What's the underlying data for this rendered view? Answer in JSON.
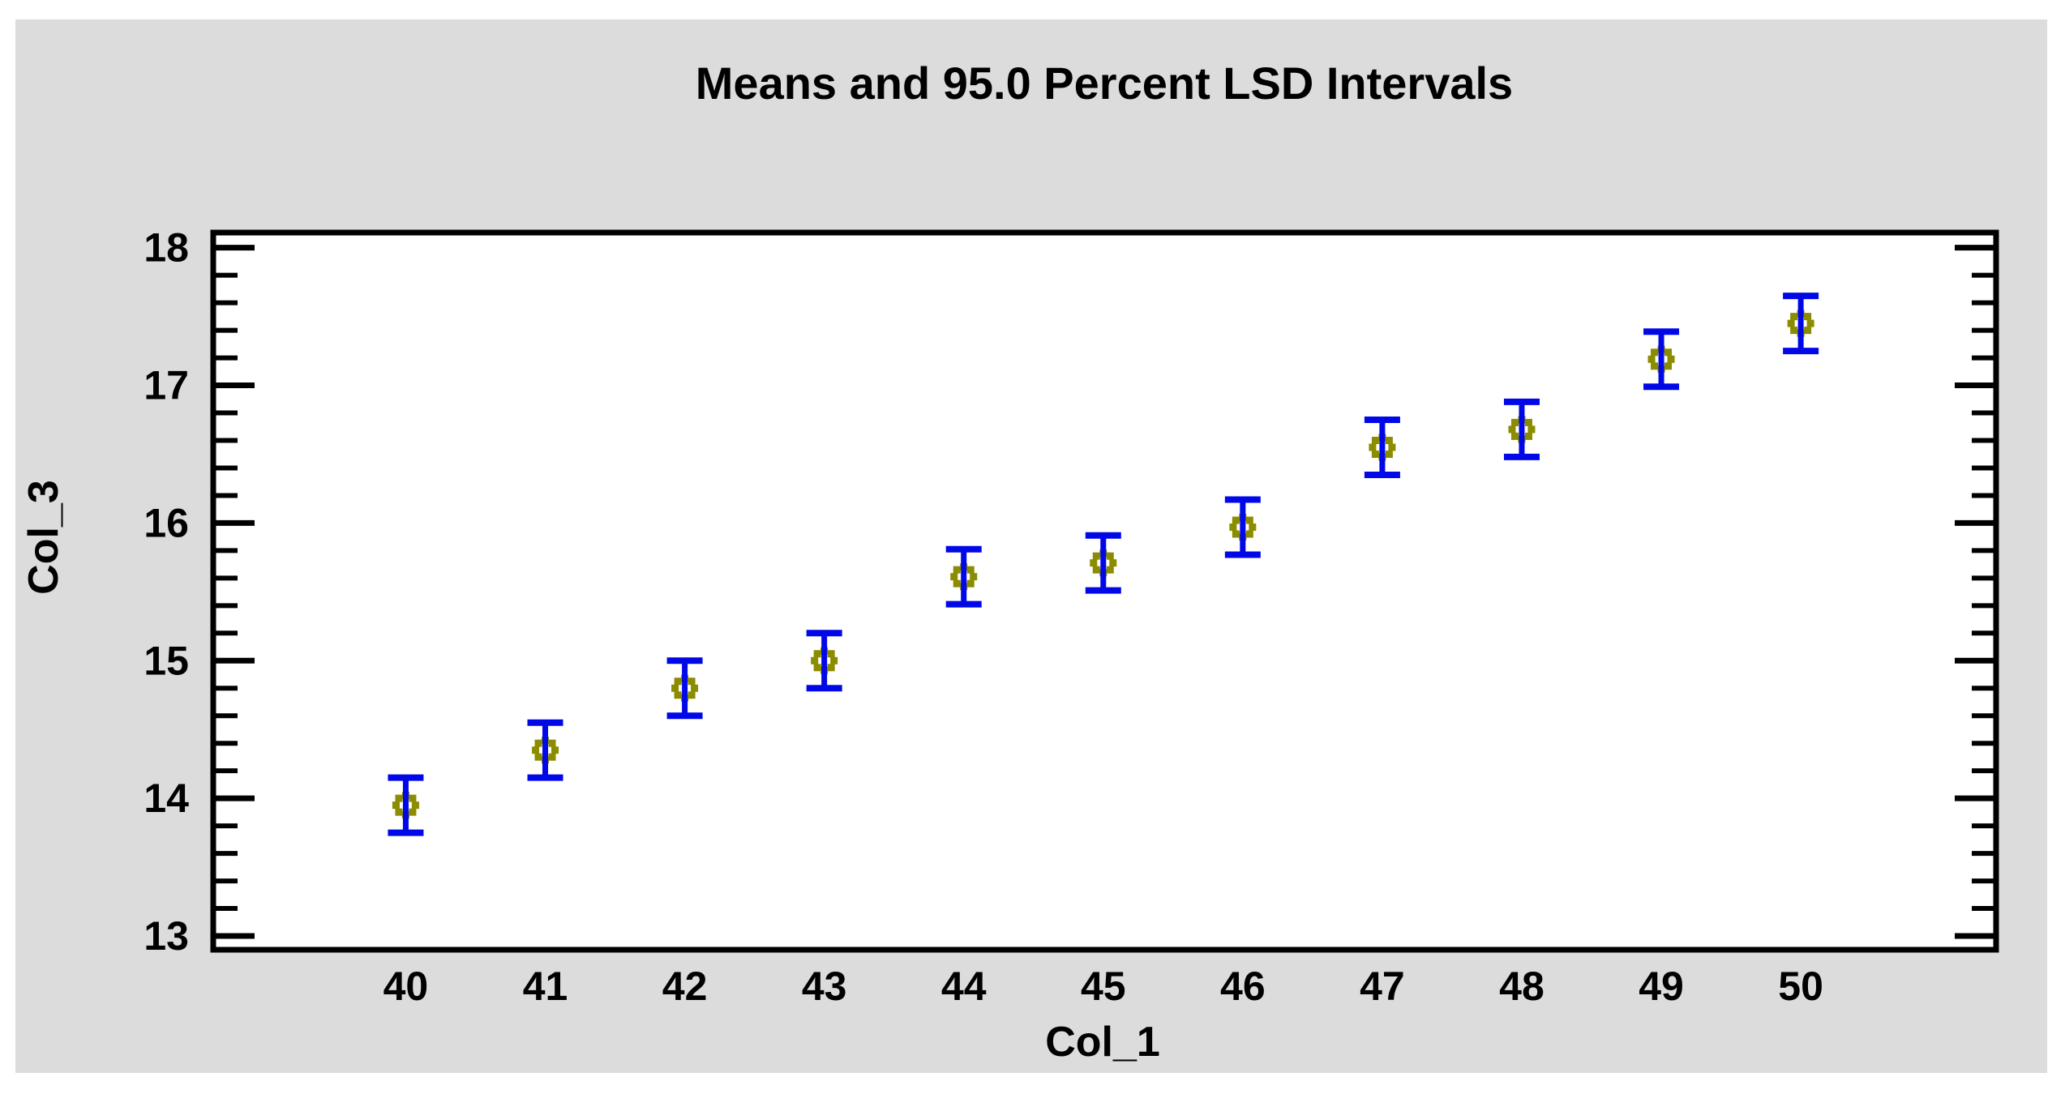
{
  "window": {
    "page_background": "#ffffff",
    "panel_background": "#dcdcdc"
  },
  "chart_data": {
    "type": "scatter",
    "subtype": "means-with-95-percent-LSD-interval-error-bars",
    "title": "Means and 95.0 Percent LSD Intervals",
    "xlabel": "Col_1",
    "ylabel": "Col_3",
    "categories": [
      40,
      41,
      42,
      43,
      44,
      45,
      46,
      47,
      48,
      49,
      50
    ],
    "points": [
      {
        "x": 40,
        "mean": 13.95,
        "lower": 13.75,
        "upper": 14.15
      },
      {
        "x": 41,
        "mean": 14.35,
        "lower": 14.15,
        "upper": 14.55
      },
      {
        "x": 42,
        "mean": 14.8,
        "lower": 14.6,
        "upper": 15.0
      },
      {
        "x": 43,
        "mean": 15.0,
        "lower": 14.8,
        "upper": 15.2
      },
      {
        "x": 44,
        "mean": 15.61,
        "lower": 15.41,
        "upper": 15.81
      },
      {
        "x": 45,
        "mean": 15.71,
        "lower": 15.51,
        "upper": 15.91
      },
      {
        "x": 46,
        "mean": 15.97,
        "lower": 15.77,
        "upper": 16.17
      },
      {
        "x": 47,
        "mean": 16.55,
        "lower": 16.35,
        "upper": 16.75
      },
      {
        "x": 48,
        "mean": 16.68,
        "lower": 16.48,
        "upper": 16.88
      },
      {
        "x": 49,
        "mean": 17.19,
        "lower": 16.99,
        "upper": 17.39
      },
      {
        "x": 50,
        "mean": 17.45,
        "lower": 17.25,
        "upper": 17.65
      }
    ],
    "lsd_half_interval": 0.2,
    "confidence_percent": "95.0",
    "y_major_ticks": [
      13,
      14,
      15,
      16,
      17,
      18
    ],
    "y_minor_step": 0.2,
    "ylim": [
      12.9,
      18.11
    ],
    "xlim": [
      38.62,
      51.4
    ],
    "grid": false,
    "legend": "none",
    "colors": {
      "error_bar": "#0008e8",
      "marker": "#8c8c00",
      "axis": "#000000",
      "plot_background": "#ffffff",
      "panel_background": "#dcdcdc"
    }
  }
}
